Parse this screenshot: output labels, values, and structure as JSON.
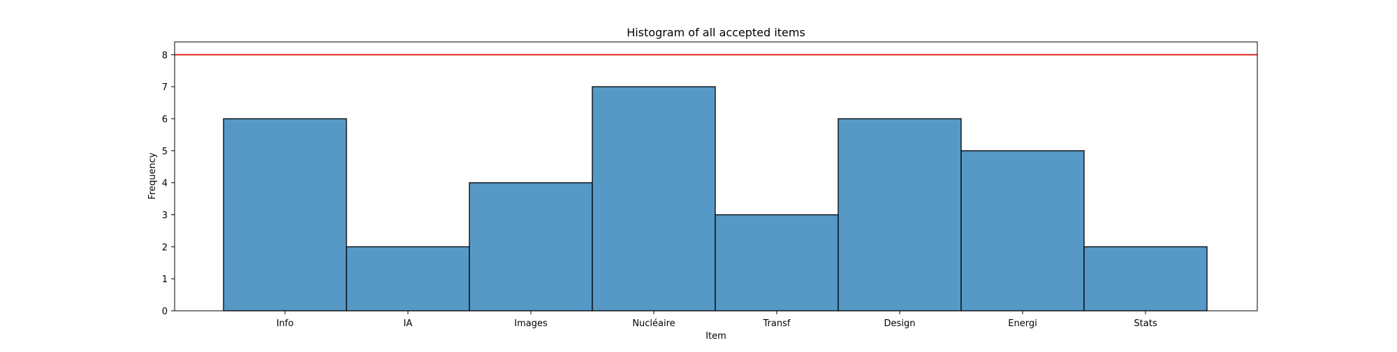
{
  "chart_data": {
    "type": "bar",
    "title": "Histogram of all accepted items",
    "xlabel": "Item",
    "ylabel": "Frequency",
    "categories": [
      "Info",
      "IA",
      "Images",
      "Nucléaire",
      "Transf",
      "Design",
      "Energi",
      "Stats"
    ],
    "values": [
      6,
      2,
      4,
      7,
      3,
      6,
      5,
      2
    ],
    "ylim": [
      0,
      8.4
    ],
    "yticks": [
      0,
      1,
      2,
      3,
      4,
      5,
      6,
      7,
      8
    ],
    "reference_line": {
      "value": 8,
      "color": "#e6261f"
    },
    "bar_color": "#5699c6",
    "bar_edge_color": "#000000",
    "grid": false
  }
}
